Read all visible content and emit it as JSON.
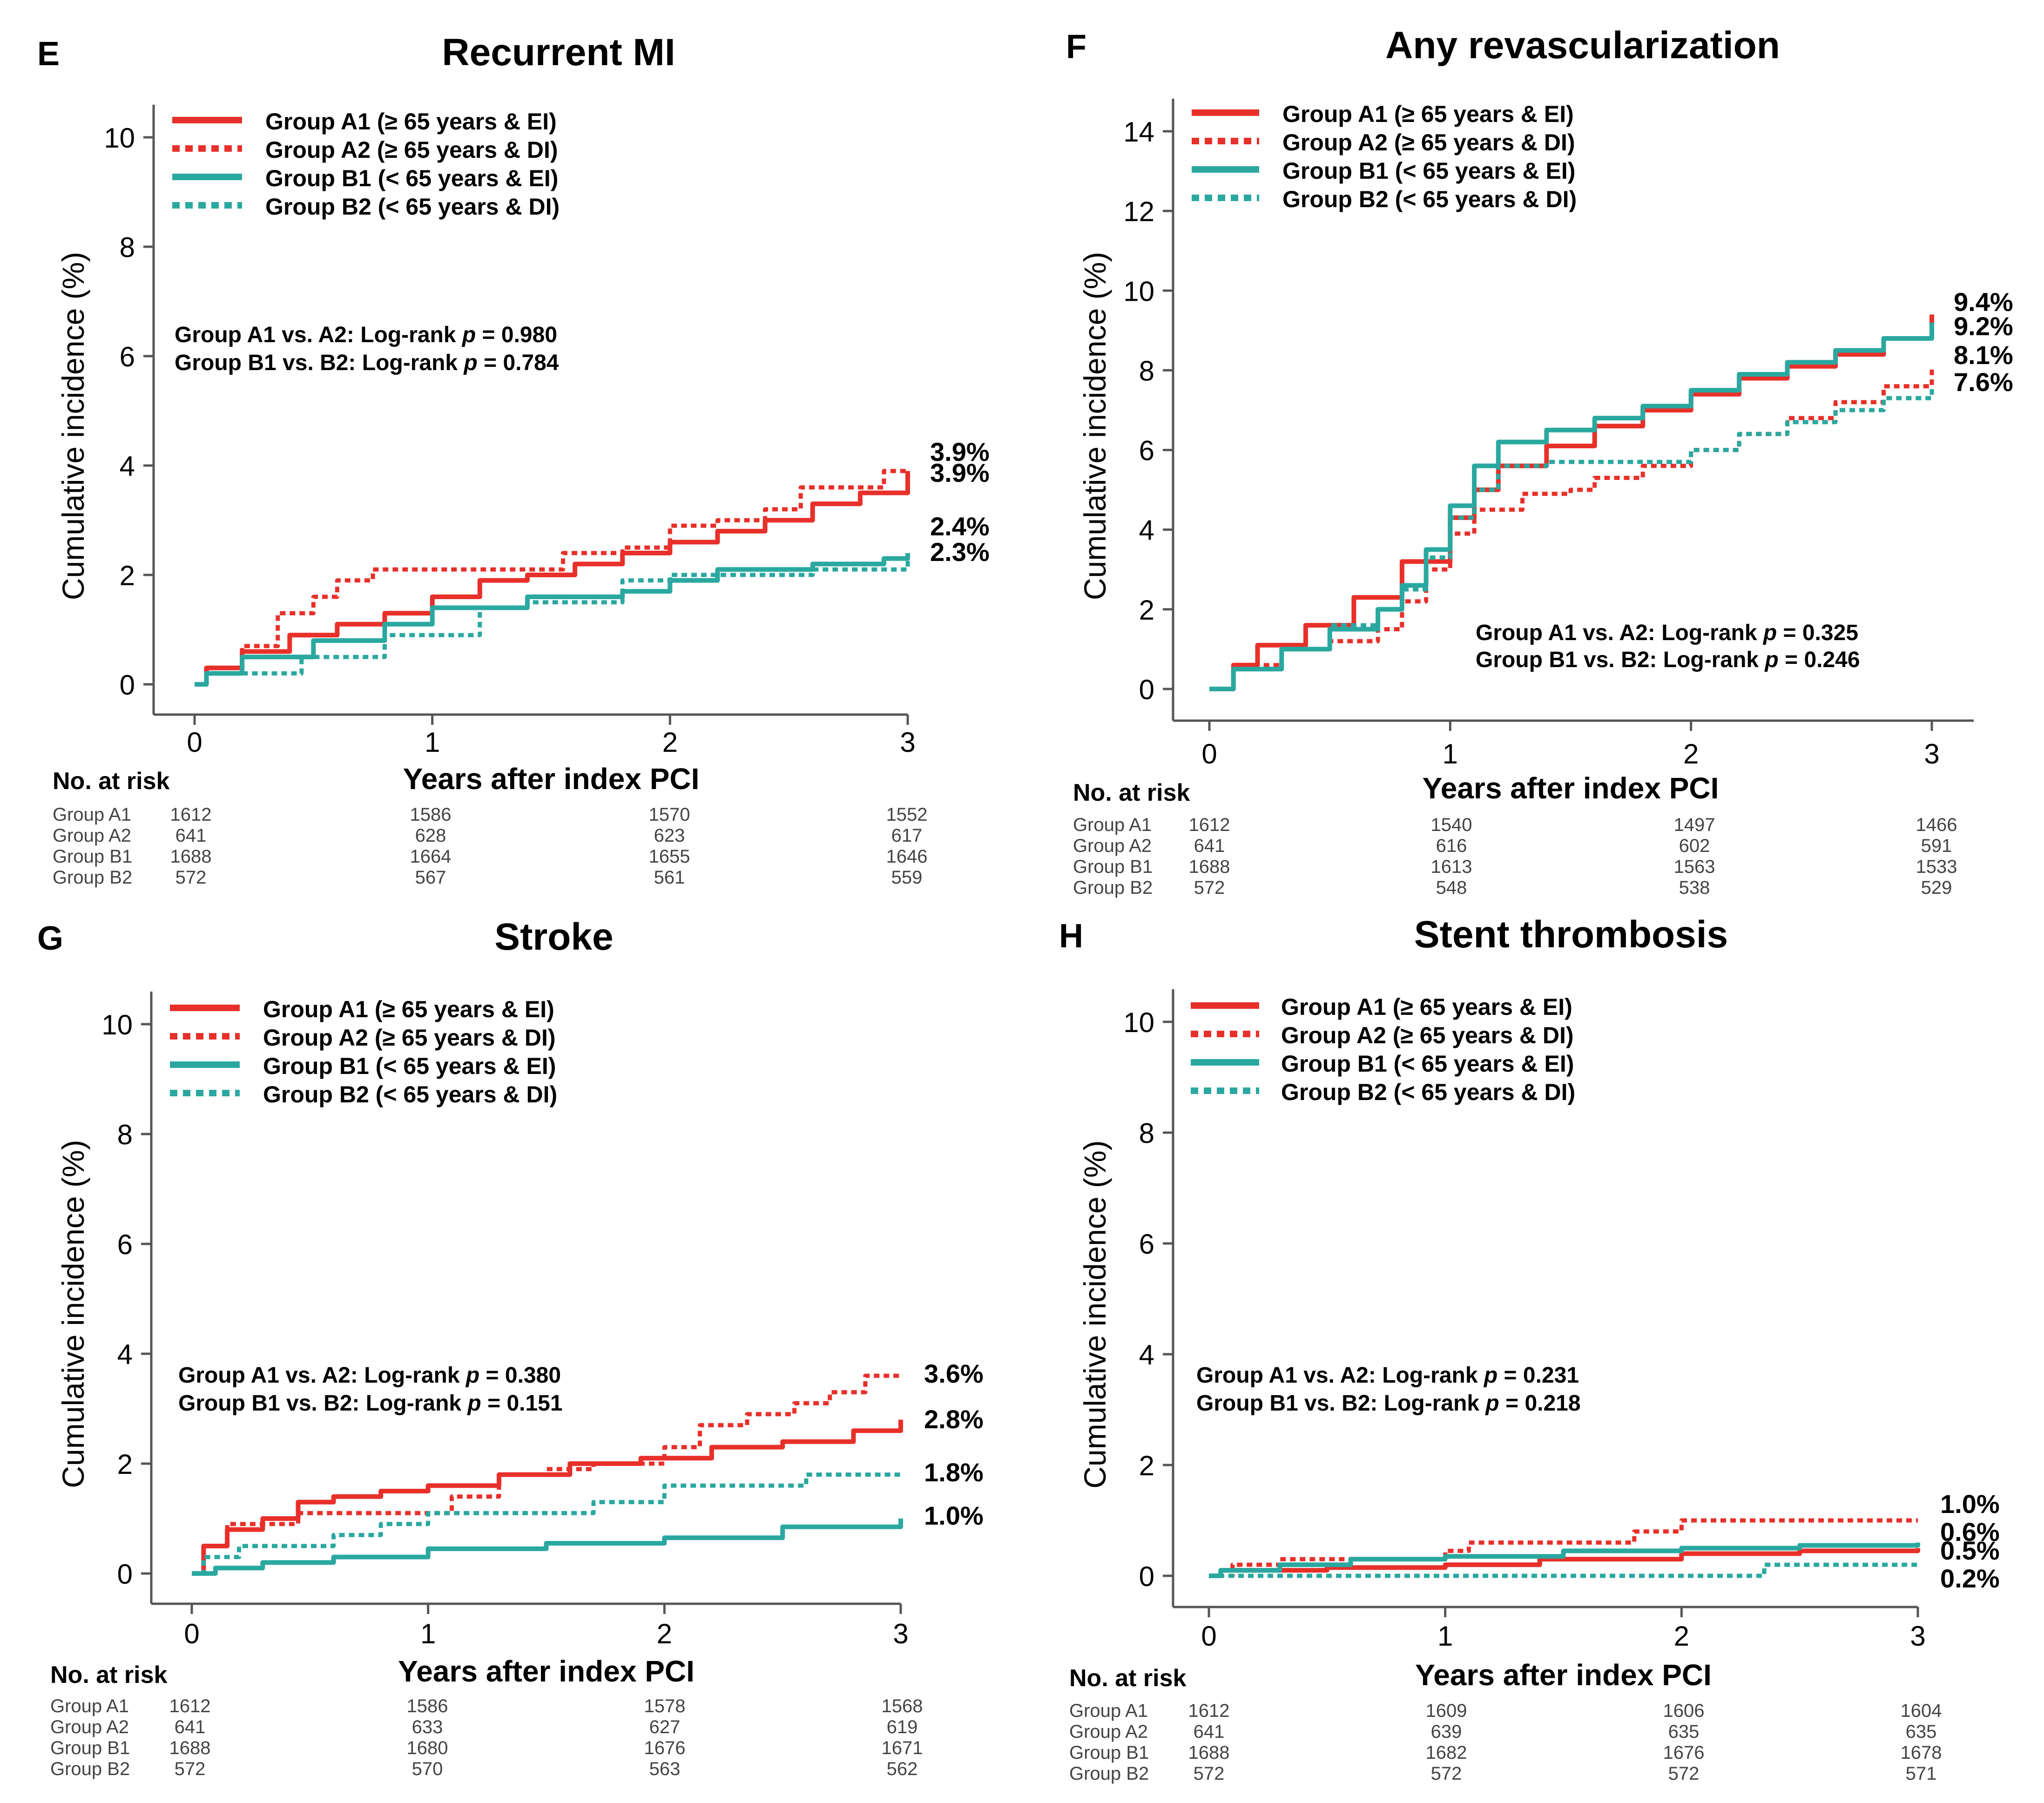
{
  "legend": [
    {
      "name": "Group A1 (≥ 65 years & EI)",
      "color": "#e8302a",
      "dashed": false
    },
    {
      "name": "Group A2 (≥ 65 years & DI)",
      "color": "#e8302a",
      "dashed": true
    },
    {
      "name": "Group B1 (< 65 years & EI)",
      "color": "#2aa8a0",
      "dashed": false
    },
    {
      "name": "Group B2 (< 65 years & DI)",
      "color": "#2aa8a0",
      "dashed": true
    }
  ],
  "risk_header": "No. at risk",
  "risk_groups": [
    "Group A1",
    "Group A2",
    "Group B1",
    "Group B2"
  ],
  "chart_data": [
    {
      "panel": "E",
      "type": "line",
      "title": "Recurrent MI",
      "xlabel": "Years  after index PCI",
      "ylabel": "Cumulative incidence (%)",
      "xlim": [
        0,
        3
      ],
      "ylim": [
        0,
        10
      ],
      "xticks": [
        0,
        1,
        2,
        3
      ],
      "yticks": [
        0,
        2,
        4,
        6,
        8,
        10
      ],
      "stats": [
        {
          "text": "Group A1 vs. A2: Log-rank ",
          "p": "p",
          "value": " = 0.980"
        },
        {
          "text": "Group B1 vs. B2: Log-rank ",
          "p": "p",
          "value": " = 0.784"
        }
      ],
      "end_labels": [
        "3.9%",
        "3.9%",
        "2.4%",
        "2.3%"
      ],
      "series": [
        {
          "name": "Group A1",
          "x": [
            0,
            0.05,
            0.2,
            0.4,
            0.6,
            0.8,
            1.0,
            1.2,
            1.4,
            1.6,
            1.8,
            2.0,
            2.2,
            2.4,
            2.6,
            2.8,
            3.0
          ],
          "y": [
            0,
            0.3,
            0.6,
            0.9,
            1.1,
            1.3,
            1.6,
            1.9,
            2.0,
            2.2,
            2.4,
            2.6,
            2.8,
            3.0,
            3.3,
            3.5,
            3.9
          ]
        },
        {
          "name": "Group A2",
          "x": [
            0,
            0.05,
            0.2,
            0.35,
            0.5,
            0.6,
            0.75,
            1.0,
            1.3,
            1.55,
            1.8,
            2.0,
            2.2,
            2.4,
            2.55,
            2.8,
            2.9,
            3.0
          ],
          "y": [
            0,
            0.3,
            0.7,
            1.3,
            1.6,
            1.9,
            2.1,
            2.1,
            2.1,
            2.4,
            2.5,
            2.9,
            3.0,
            3.2,
            3.6,
            3.6,
            3.9,
            3.9
          ]
        },
        {
          "name": "Group B1",
          "x": [
            0,
            0.05,
            0.2,
            0.5,
            0.8,
            1.0,
            1.4,
            1.8,
            2.0,
            2.2,
            2.6,
            2.9,
            3.0
          ],
          "y": [
            0,
            0.2,
            0.5,
            0.8,
            1.1,
            1.4,
            1.6,
            1.7,
            1.9,
            2.1,
            2.2,
            2.3,
            2.4
          ]
        },
        {
          "name": "Group B2",
          "x": [
            0,
            0.05,
            0.15,
            0.3,
            0.45,
            0.6,
            0.8,
            0.95,
            1.2,
            1.4,
            1.6,
            1.8,
            2.0,
            2.3,
            2.6,
            2.8,
            3.0
          ],
          "y": [
            0,
            0.2,
            0.2,
            0.2,
            0.5,
            0.5,
            0.9,
            0.9,
            1.4,
            1.5,
            1.5,
            1.9,
            2.0,
            2.0,
            2.1,
            2.1,
            2.3
          ]
        }
      ],
      "risk_table": [
        [
          "1612",
          "1586",
          "1570",
          "1552"
        ],
        [
          "641",
          "628",
          "623",
          "617"
        ],
        [
          "1688",
          "1664",
          "1655",
          "1646"
        ],
        [
          "572",
          "567",
          "561",
          "559"
        ]
      ]
    },
    {
      "panel": "F",
      "type": "line",
      "title": "Any revascularization",
      "xlabel": "Years  after index PCI",
      "ylabel": "Cumulative incidence (%)",
      "xlim": [
        0,
        3
      ],
      "ylim": [
        0,
        14
      ],
      "xticks": [
        0,
        1,
        2,
        3
      ],
      "yticks": [
        0,
        2,
        4,
        6,
        8,
        10,
        12,
        14
      ],
      "stats": [
        {
          "text": "Group A1 vs. A2: Log-rank ",
          "p": "p",
          "value": " = 0.325"
        },
        {
          "text": "Group B1 vs. B2: Log-rank ",
          "p": "p",
          "value": " = 0.246"
        }
      ],
      "end_labels": [
        "9.4%",
        "9.2%",
        "8.1%",
        "7.6%"
      ],
      "series": [
        {
          "name": "Group A1",
          "x": [
            0,
            0.1,
            0.2,
            0.4,
            0.6,
            0.8,
            1.0,
            1.1,
            1.2,
            1.4,
            1.6,
            1.8,
            2.0,
            2.2,
            2.4,
            2.6,
            2.8,
            3.0
          ],
          "y": [
            0,
            0.6,
            1.1,
            1.6,
            2.3,
            3.2,
            4.3,
            5.0,
            5.6,
            6.1,
            6.6,
            7.0,
            7.4,
            7.8,
            8.1,
            8.4,
            8.8,
            9.4
          ]
        },
        {
          "name": "Group A2",
          "x": [
            0,
            0.1,
            0.3,
            0.5,
            0.7,
            0.8,
            0.9,
            1.0,
            1.1,
            1.3,
            1.5,
            1.6,
            1.8,
            2.0,
            2.2,
            2.4,
            2.6,
            2.8,
            3.0
          ],
          "y": [
            0,
            0.6,
            1.0,
            1.2,
            1.5,
            2.2,
            3.0,
            3.9,
            4.5,
            4.9,
            5.0,
            5.3,
            5.6,
            6.0,
            6.4,
            6.8,
            7.2,
            7.6,
            8.1
          ]
        },
        {
          "name": "Group B1",
          "x": [
            0,
            0.1,
            0.3,
            0.5,
            0.7,
            0.8,
            0.9,
            1.0,
            1.1,
            1.2,
            1.4,
            1.6,
            1.8,
            2.0,
            2.2,
            2.4,
            2.6,
            2.8,
            3.0
          ],
          "y": [
            0,
            0.5,
            1.0,
            1.5,
            2.0,
            2.6,
            3.5,
            4.6,
            5.6,
            6.2,
            6.5,
            6.8,
            7.1,
            7.5,
            7.9,
            8.2,
            8.5,
            8.8,
            9.2
          ]
        },
        {
          "name": "Group B2",
          "x": [
            0,
            0.1,
            0.3,
            0.5,
            0.7,
            0.8,
            0.9,
            1.0,
            1.1,
            1.2,
            1.4,
            1.6,
            1.8,
            2.0,
            2.2,
            2.4,
            2.6,
            2.8,
            3.0
          ],
          "y": [
            0,
            0.5,
            1.0,
            1.6,
            2.0,
            2.5,
            3.3,
            4.3,
            5.0,
            5.6,
            5.7,
            5.7,
            5.7,
            6.0,
            6.4,
            6.7,
            7.0,
            7.3,
            7.6
          ]
        }
      ],
      "risk_table": [
        [
          "1612",
          "1540",
          "1497",
          "1466"
        ],
        [
          "641",
          "616",
          "602",
          "591"
        ],
        [
          "1688",
          "1613",
          "1563",
          "1533"
        ],
        [
          "572",
          "548",
          "538",
          "529"
        ]
      ]
    },
    {
      "panel": "G",
      "type": "line",
      "title": "Stroke",
      "xlabel": "Years  after index PCI",
      "ylabel": "Cumulative incidence (%)",
      "xlim": [
        0,
        3
      ],
      "ylim": [
        0,
        10
      ],
      "xticks": [
        0,
        1,
        2,
        3
      ],
      "yticks": [
        0,
        2,
        4,
        6,
        8,
        10
      ],
      "stats": [
        {
          "text": "Group A1 vs. A2: Log-rank ",
          "p": "p",
          "value": " = 0.380"
        },
        {
          "text": "Group B1 vs. B2: Log-rank ",
          "p": "p",
          "value": " = 0.151"
        }
      ],
      "end_labels": [
        "3.6%",
        "2.8%",
        "1.8%",
        "1.0%"
      ],
      "series": [
        {
          "name": "Group A1",
          "x": [
            0,
            0.05,
            0.15,
            0.3,
            0.45,
            0.6,
            0.8,
            1.0,
            1.3,
            1.6,
            1.9,
            2.2,
            2.5,
            2.8,
            3.0
          ],
          "y": [
            0,
            0.5,
            0.8,
            1.0,
            1.3,
            1.4,
            1.5,
            1.6,
            1.8,
            2.0,
            2.1,
            2.3,
            2.4,
            2.6,
            2.8
          ]
        },
        {
          "name": "Group A2",
          "x": [
            0,
            0.05,
            0.15,
            0.3,
            0.45,
            0.7,
            0.95,
            1.1,
            1.3,
            1.5,
            1.7,
            2.0,
            2.15,
            2.35,
            2.55,
            2.7,
            2.85,
            3.0
          ],
          "y": [
            0,
            0.5,
            0.9,
            0.9,
            1.1,
            1.1,
            1.1,
            1.4,
            1.8,
            1.9,
            2.0,
            2.3,
            2.7,
            2.9,
            3.1,
            3.3,
            3.6,
            3.6
          ]
        },
        {
          "name": "Group B1",
          "x": [
            0,
            0.1,
            0.3,
            0.6,
            1.0,
            1.5,
            2.0,
            2.5,
            3.0
          ],
          "y": [
            0,
            0.1,
            0.2,
            0.3,
            0.45,
            0.55,
            0.65,
            0.85,
            1.0
          ]
        },
        {
          "name": "Group B2",
          "x": [
            0,
            0.05,
            0.2,
            0.4,
            0.6,
            0.8,
            1.0,
            1.4,
            1.7,
            2.0,
            2.4,
            2.6,
            3.0
          ],
          "y": [
            0,
            0.3,
            0.5,
            0.5,
            0.7,
            0.9,
            1.1,
            1.1,
            1.3,
            1.6,
            1.6,
            1.8,
            1.8
          ]
        }
      ],
      "risk_table": [
        [
          "1612",
          "1586",
          "1578",
          "1568"
        ],
        [
          "641",
          "633",
          "627",
          "619"
        ],
        [
          "1688",
          "1680",
          "1676",
          "1671"
        ],
        [
          "572",
          "570",
          "563",
          "562"
        ]
      ]
    },
    {
      "panel": "H",
      "type": "line",
      "title": "Stent thrombosis",
      "xlabel": "Years  after index PCI",
      "ylabel": "Cumulative incidence (%)",
      "xlim": [
        0,
        3
      ],
      "ylim": [
        0,
        10
      ],
      "xticks": [
        0,
        1,
        2,
        3
      ],
      "yticks": [
        0,
        2,
        4,
        6,
        8,
        10
      ],
      "stats": [
        {
          "text": "Group A1 vs. A2: Log-rank ",
          "p": "p",
          "value": " = 0.231"
        },
        {
          "text": "Group B1 vs. B2: Log-rank ",
          "p": "p",
          "value": " = 0.218"
        }
      ],
      "end_labels": [
        "1.0%",
        "0.6%",
        "0.5%",
        "0.2%"
      ],
      "series": [
        {
          "name": "Group A1",
          "x": [
            0,
            0.05,
            0.5,
            1.0,
            1.4,
            2.0,
            2.5,
            3.0
          ],
          "y": [
            0,
            0.1,
            0.15,
            0.2,
            0.3,
            0.4,
            0.45,
            0.5
          ]
        },
        {
          "name": "Group A2",
          "x": [
            0,
            0.1,
            0.3,
            0.8,
            1.0,
            1.1,
            1.5,
            1.8,
            2.0,
            3.0
          ],
          "y": [
            0,
            0.2,
            0.3,
            0.3,
            0.45,
            0.6,
            0.6,
            0.8,
            1.0,
            1.0
          ]
        },
        {
          "name": "Group B1",
          "x": [
            0,
            0.05,
            0.3,
            0.6,
            1.0,
            1.5,
            2.0,
            2.5,
            3.0
          ],
          "y": [
            0,
            0.1,
            0.2,
            0.3,
            0.35,
            0.45,
            0.5,
            0.55,
            0.6
          ]
        },
        {
          "name": "Group B2",
          "x": [
            0,
            2.3,
            2.35,
            3.0
          ],
          "y": [
            0,
            0,
            0.2,
            0.2
          ]
        }
      ],
      "risk_table": [
        [
          "1612",
          "1609",
          "1606",
          "1604"
        ],
        [
          "641",
          "639",
          "635",
          "635"
        ],
        [
          "1688",
          "1682",
          "1676",
          "1678"
        ],
        [
          "572",
          "572",
          "572",
          "571"
        ]
      ]
    }
  ]
}
